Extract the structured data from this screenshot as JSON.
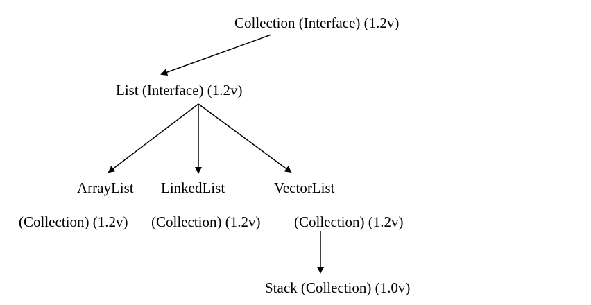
{
  "nodes": {
    "collection": {
      "label": "Collection (Interface) (1.2v)"
    },
    "list": {
      "label": "List (Interface) (1.2v)"
    },
    "arraylist": {
      "label": "ArrayList",
      "sublabel": "(Collection) (1.2v)"
    },
    "linkedlist": {
      "label": "LinkedList",
      "sublabel": "(Collection) (1.2v)"
    },
    "vectorlist": {
      "label": "VectorList",
      "sublabel": "(Collection) (1.2v)"
    },
    "stack": {
      "label": "Stack (Collection) (1.0v)"
    }
  },
  "edges": [
    {
      "from": "collection",
      "to": "list"
    },
    {
      "from": "list",
      "to": "arraylist"
    },
    {
      "from": "list",
      "to": "linkedlist"
    },
    {
      "from": "list",
      "to": "vectorlist"
    },
    {
      "from": "vectorlist",
      "to": "stack"
    }
  ],
  "colors": {
    "line": "#000000",
    "text": "#000000",
    "background": "#ffffff"
  }
}
